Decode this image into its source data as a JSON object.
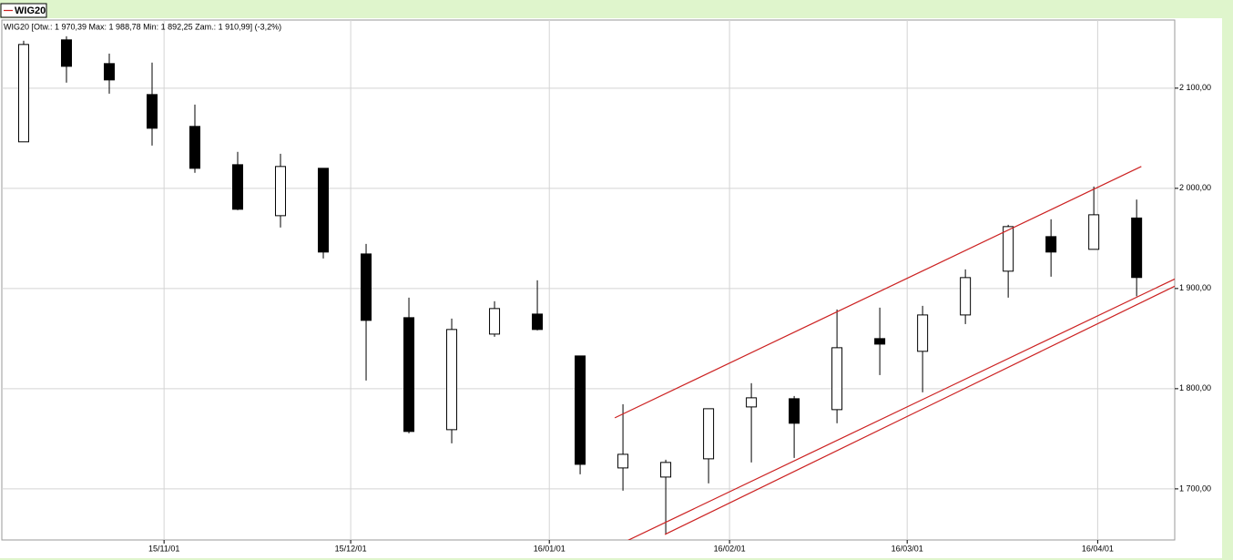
{
  "chart_data": {
    "type": "candlestick",
    "name": "WIG20",
    "info": "WIG20 [Otw.: 1 970,39  Max: 1 988,78  Min: 1 892,25  Zam.: 1 910,99] (-3,2%)",
    "categories": [
      null,
      null,
      null,
      null,
      null,
      null,
      null,
      null,
      null,
      null,
      null,
      null,
      null,
      null,
      null,
      null,
      null,
      null,
      null,
      null,
      null,
      null,
      null,
      null,
      null,
      null,
      null
    ],
    "open": [
      2046.4,
      2148.2,
      2124.5,
      2093.6,
      2061.8,
      2023.6,
      1972.7,
      2020,
      1934.5,
      1870.9,
      1759.1,
      1854.5,
      1874.5,
      1832.7,
      1720.9,
      1711.8,
      1730,
      1781.8,
      1790,
      1779.1,
      1850,
      1837.3,
      1873.6,
      1917.3,
      1951.8,
      1939.1,
      1970.39
    ],
    "high": [
      2147.3,
      2151.8,
      2134.5,
      2125.5,
      2083.6,
      2036.4,
      2034.5,
      2020,
      1944.5,
      1890.9,
      1870,
      1887.3,
      1908.2,
      1832.7,
      1784.5,
      1729.1,
      1780,
      1805.5,
      1792.7,
      1879.1,
      1880.9,
      1882.7,
      1919.1,
      1963.6,
      1969.1,
      2001.8,
      1988.78
    ],
    "low": [
      2046.4,
      2105.5,
      2094.5,
      2042.7,
      2015.5,
      1978.2,
      1960.9,
      1930,
      1808.2,
      1755.5,
      1745.5,
      1851.8,
      1858.2,
      1714.5,
      1698.2,
      1655.5,
      1705.5,
      1726.4,
      1730.9,
      1765.5,
      1813.6,
      1796.4,
      1864.5,
      1890.9,
      1911.8,
      1939.1,
      1892.25
    ],
    "close": [
      2143.6,
      2121.8,
      2108.2,
      2060,
      2020,
      1979.1,
      2021.8,
      1936.4,
      1868.2,
      1757.3,
      1859.1,
      1880,
      1859.1,
      1724.5,
      1734.5,
      1726.4,
      1780,
      1790.9,
      1765.5,
      1840.9,
      1844.5,
      1873.6,
      1910.9,
      1961.8,
      1936.4,
      1973.6,
      1910.99
    ],
    "up_color": "#ffffff",
    "down_color": "#000000",
    "xlim": [
      -0.51,
      26.89
    ],
    "xticks": [
      {
        "value": 3.28,
        "label": "15/11/01"
      },
      {
        "value": 7.64,
        "label": "15/12/01"
      },
      {
        "value": 12.28,
        "label": "16/01/01"
      },
      {
        "value": 16.49,
        "label": "16/02/01"
      },
      {
        "value": 20.64,
        "label": "16/03/01"
      },
      {
        "value": 25.09,
        "label": "16/04/01"
      }
    ],
    "ylim": [
      1649,
      2168
    ],
    "yticks": [
      {
        "value": 1700,
        "label": "1 700,00"
      },
      {
        "value": 1800,
        "label": "1 800,00"
      },
      {
        "value": 1900,
        "label": "1 900,00"
      },
      {
        "value": 2000,
        "label": "2 000,00"
      },
      {
        "value": 2100,
        "label": "2 100,00"
      }
    ],
    "grid": true,
    "trendline_color": "#cc2222",
    "trendlines": [
      {
        "x": [
          13.81,
          26.11
        ],
        "y": [
          1770.9,
          2021.8
        ]
      },
      {
        "x": [
          13.38,
          27.85
        ],
        "y": [
          1633.6,
          1929.1
        ]
      },
      {
        "x": [
          14.98,
          27.74
        ],
        "y": [
          1654.5,
          1920
        ]
      }
    ]
  }
}
